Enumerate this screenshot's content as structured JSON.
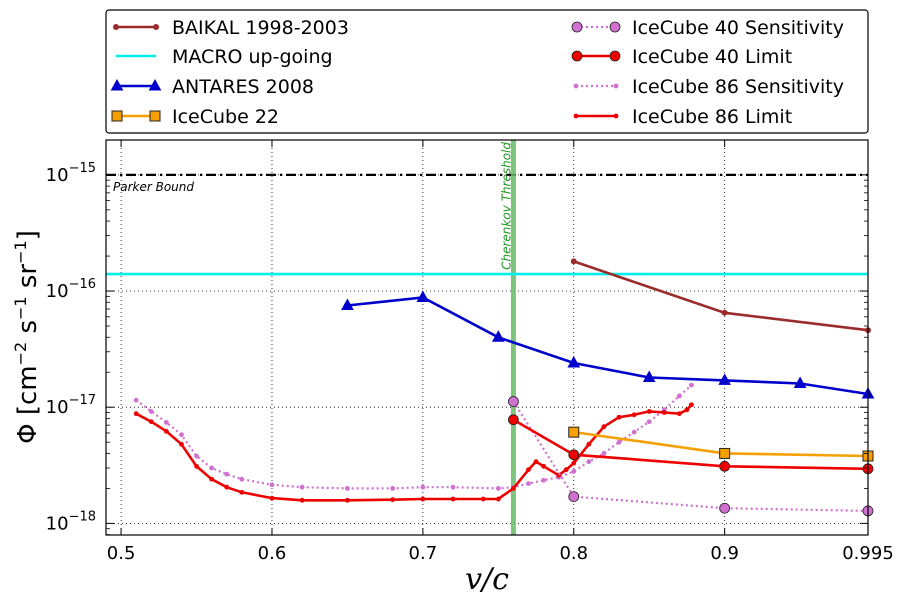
{
  "chart_data": {
    "type": "line",
    "title": "",
    "xlabel": "v/c",
    "ylabel_main": "Φ [cm",
    "ylabel_exp1": "−2",
    "ylabel_mid": " s",
    "ylabel_exp2": "−1",
    "ylabel_end": " sr",
    "ylabel_exp3": "−1",
    "ylabel_close": "]",
    "xlim": [
      0.49,
      0.995
    ],
    "ylim_log10": [
      -18.1,
      -14.7
    ],
    "yscale": "log",
    "grid": true,
    "x_ticks": [
      {
        "value": 0.5,
        "label": "0.5"
      },
      {
        "value": 0.6,
        "label": "0.6"
      },
      {
        "value": 0.7,
        "label": "0.7"
      },
      {
        "value": 0.8,
        "label": "0.8"
      },
      {
        "value": 0.9,
        "label": "0.9"
      },
      {
        "value": 0.995,
        "label": "0.995"
      }
    ],
    "y_ticks": [
      {
        "exp": -15,
        "base": "10",
        "sup": "−15"
      },
      {
        "exp": -16,
        "base": "10",
        "sup": "−16"
      },
      {
        "exp": -17,
        "base": "10",
        "sup": "−17"
      },
      {
        "exp": -18,
        "base": "10",
        "sup": "−18"
      }
    ],
    "reference_lines": {
      "parker": {
        "y": 1e-15,
        "label": "Parker Bound",
        "color": "#000000"
      },
      "cherenkov": {
        "x": 0.76,
        "label": "Cherenkov Threshold",
        "color": "#66bb66"
      }
    },
    "legend_position": "top",
    "series": [
      {
        "name": "BAIKAL 1998-2003",
        "color": "#9b2c2c",
        "style": "line",
        "marker": "dot",
        "x": [
          0.8,
          0.9,
          0.995
        ],
        "y": [
          1.8e-16,
          6.5e-17,
          4.6e-17
        ]
      },
      {
        "name": "MACRO up-going",
        "color": "#00eeee",
        "style": "hline",
        "marker": "none",
        "x": [
          0.49,
          0.995
        ],
        "y": [
          1.4e-16,
          1.4e-16
        ]
      },
      {
        "name": "ANTARES 2008",
        "color": "#0000cc",
        "style": "line",
        "marker": "triangle",
        "x": [
          0.65,
          0.7,
          0.75,
          0.8,
          0.85,
          0.9,
          0.95,
          0.995
        ],
        "y": [
          7.5e-17,
          8.8e-17,
          4e-17,
          2.4e-17,
          1.8e-17,
          1.7e-17,
          1.6e-17,
          1.3e-17
        ]
      },
      {
        "name": "IceCube 22",
        "color": "#f5a000",
        "style": "line",
        "marker": "square",
        "x": [
          0.8,
          0.9,
          0.995
        ],
        "y": [
          6.1e-18,
          4e-18,
          3.8e-18
        ]
      },
      {
        "name": "IceCube 40 Sensitivity",
        "color": "#d070d0",
        "style": "dotted",
        "marker": "circle",
        "x": [
          0.76,
          0.8,
          0.9,
          0.995
        ],
        "y": [
          1.12e-17,
          1.7e-18,
          1.35e-18,
          1.28e-18
        ]
      },
      {
        "name": "IceCube 40 Limit",
        "color": "#ee0000",
        "style": "line",
        "marker": "circle",
        "x": [
          0.76,
          0.8,
          0.9,
          0.995
        ],
        "y": [
          7.8e-18,
          3.9e-18,
          3.1e-18,
          2.95e-18
        ]
      },
      {
        "name": "IceCube 86 Sensitivity",
        "color": "#d070d0",
        "style": "dotted",
        "marker": "smalldot",
        "x": [
          0.51,
          0.52,
          0.53,
          0.54,
          0.55,
          0.56,
          0.57,
          0.58,
          0.6,
          0.62,
          0.65,
          0.68,
          0.7,
          0.72,
          0.75,
          0.76,
          0.77,
          0.78,
          0.79,
          0.8,
          0.81,
          0.82,
          0.83,
          0.84,
          0.85,
          0.86,
          0.87,
          0.878
        ],
        "y": [
          1.15e-17,
          9.2e-18,
          7.4e-18,
          5.8e-18,
          3.8e-18,
          3e-18,
          2.65e-18,
          2.4e-18,
          2.15e-18,
          2.05e-18,
          2e-18,
          2e-18,
          2.05e-18,
          2.05e-18,
          2e-18,
          2.05e-18,
          2.2e-18,
          2.35e-18,
          2.5e-18,
          2.8e-18,
          3.4e-18,
          4e-18,
          5e-18,
          6.1e-18,
          7.5e-18,
          9.5e-18,
          1.25e-17,
          1.55e-17
        ]
      },
      {
        "name": "IceCube 86 Limit",
        "color": "#ee0000",
        "style": "line",
        "marker": "smalldot",
        "x": [
          0.51,
          0.52,
          0.53,
          0.54,
          0.55,
          0.56,
          0.57,
          0.58,
          0.6,
          0.62,
          0.65,
          0.68,
          0.7,
          0.72,
          0.74,
          0.75,
          0.76,
          0.77,
          0.775,
          0.78,
          0.79,
          0.795,
          0.8,
          0.81,
          0.82,
          0.83,
          0.84,
          0.85,
          0.86,
          0.87,
          0.875,
          0.878
        ],
        "y": [
          8.8e-18,
          7.5e-18,
          6.2e-18,
          4.8e-18,
          3.1e-18,
          2.4e-18,
          2.05e-18,
          1.85e-18,
          1.65e-18,
          1.58e-18,
          1.58e-18,
          1.6e-18,
          1.62e-18,
          1.62e-18,
          1.62e-18,
          1.62e-18,
          2e-18,
          2.9e-18,
          3.4e-18,
          3.1e-18,
          2.6e-18,
          2.9e-18,
          3.3e-18,
          4.8e-18,
          6.8e-18,
          8.2e-18,
          8.6e-18,
          9.2e-18,
          9e-18,
          8.8e-18,
          9.5e-18,
          1.05e-17
        ]
      }
    ]
  }
}
